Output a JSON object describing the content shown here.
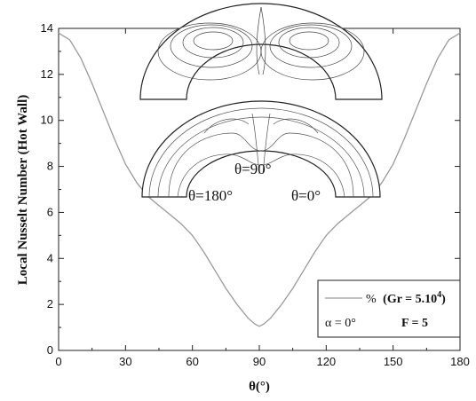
{
  "chart_data": {
    "type": "line",
    "title": "",
    "xlabel": "θ(°)",
    "ylabel": "Local Nusselt Number (Hot Wall)",
    "xlim": [
      0,
      180
    ],
    "ylim": [
      0,
      14
    ],
    "xticks": [
      "0",
      "30",
      "60",
      "90",
      "120",
      "150",
      "180"
    ],
    "yticks": [
      "0",
      "2",
      "4",
      "6",
      "8",
      "10",
      "12",
      "14"
    ],
    "x": [
      0,
      5,
      10,
      15,
      20,
      25,
      30,
      35,
      40,
      45,
      50,
      55,
      60,
      65,
      70,
      75,
      80,
      85,
      88,
      90,
      92,
      95,
      100,
      105,
      110,
      115,
      120,
      125,
      130,
      135,
      140,
      145,
      150,
      155,
      160,
      165,
      170,
      175,
      180
    ],
    "series": [
      {
        "name": "%",
        "values": [
          13.8,
          13.5,
          12.7,
          11.6,
          10.4,
          9.2,
          8.1,
          7.3,
          6.7,
          6.3,
          5.9,
          5.5,
          5.0,
          4.3,
          3.5,
          2.7,
          2.0,
          1.4,
          1.15,
          1.05,
          1.15,
          1.4,
          2.0,
          2.7,
          3.5,
          4.3,
          5.0,
          5.5,
          5.9,
          6.3,
          6.7,
          7.3,
          8.1,
          9.2,
          10.4,
          11.6,
          12.7,
          13.5,
          13.8
        ]
      }
    ],
    "legend": {
      "placement": "bottom-right",
      "gr_label": "(Gr = 5.10",
      "gr_exp": "4",
      "gr_close": ")",
      "alpha": "α = 0°",
      "f": "F = 5"
    },
    "annotations": {
      "top_label": "θ=90°",
      "left_label": "θ=180°",
      "right_label": "θ=0°"
    }
  }
}
